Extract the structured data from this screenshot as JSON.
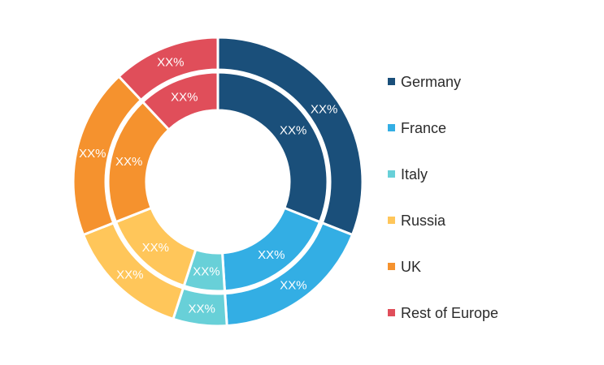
{
  "chart_data": {
    "type": "pie",
    "variant": "nested-donut",
    "categories": [
      "Germany",
      "France",
      "Italy",
      "Russia",
      "UK",
      "Rest of Europe"
    ],
    "colors": [
      "#1a4f7a",
      "#33aee4",
      "#68d0d8",
      "#ffc65a",
      "#f5922e",
      "#e04e5a"
    ],
    "series": [
      {
        "ring": "outer",
        "values": [
          31,
          18,
          6,
          14,
          19,
          12
        ],
        "labels": [
          "XX%",
          "XX%",
          "XX%",
          "XX%",
          "XX%",
          "XX%"
        ]
      },
      {
        "ring": "inner",
        "values": [
          31,
          18,
          6,
          14,
          19,
          12
        ],
        "labels": [
          "XX%",
          "XX%",
          "XX%",
          "XX%",
          "XX%",
          "XX%"
        ]
      }
    ],
    "legend_position": "right"
  }
}
